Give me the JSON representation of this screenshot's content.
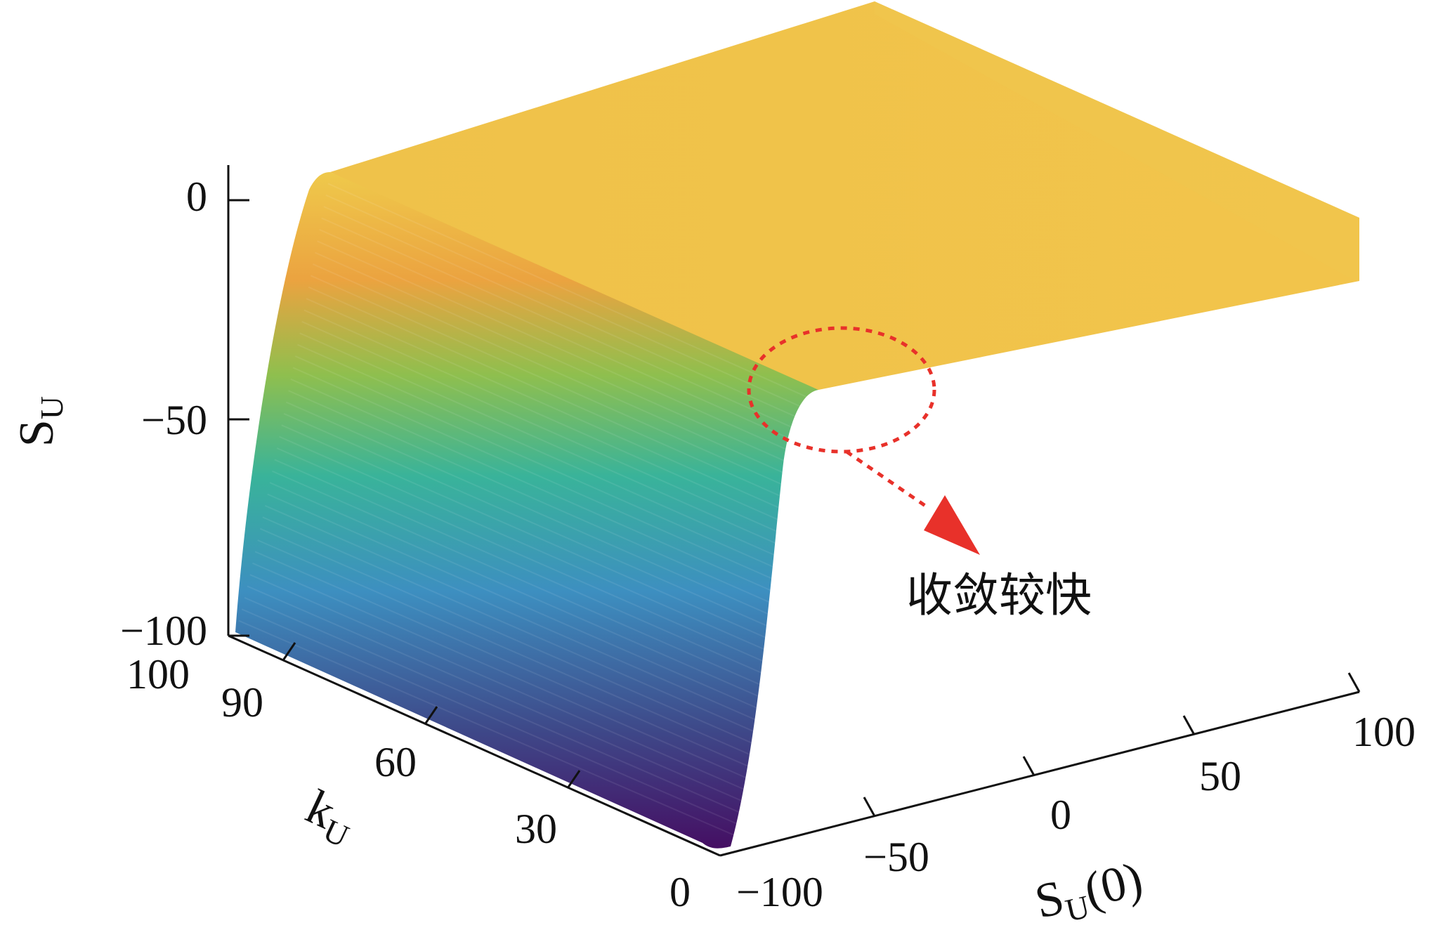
{
  "chart_data": {
    "type": "surface",
    "title": "",
    "z_axis": {
      "label_main": "S",
      "label_sub": "U",
      "ticks": [
        "0",
        "−50",
        "−100"
      ],
      "tick_values": [
        0,
        -50,
        -100
      ],
      "range": [
        -100,
        10
      ]
    },
    "k_axis": {
      "label_main": "k",
      "label_sub": "U",
      "ticks": [
        "0",
        "30",
        "60",
        "90",
        "100"
      ],
      "tick_values": [
        0,
        30,
        60,
        90,
        100
      ],
      "range": [
        0,
        100
      ]
    },
    "s0_axis": {
      "label_main": "S",
      "label_sub": "U",
      "label_suffix": "(0)",
      "ticks": [
        "−100",
        "−50",
        "0",
        "50",
        "100"
      ],
      "tick_values": [
        -100,
        -50,
        0,
        50,
        100
      ],
      "range": [
        -100,
        100
      ]
    },
    "surface_profile": {
      "description_values": "S_U vs k_U: starts at −100 at k_U=0, rises steeply and converges to ≈0 by k_U≈20, stays ≈0 to k_U=100; for all S_U(0) values",
      "k": [
        0,
        2,
        4,
        6,
        8,
        10,
        12,
        14,
        16,
        18,
        20,
        25,
        30,
        40,
        50,
        60,
        70,
        80,
        90,
        100
      ],
      "s": [
        -100,
        -99,
        -96,
        -88,
        -72,
        -52,
        -32,
        -16,
        -7,
        -3,
        -1,
        0,
        0,
        0,
        0,
        0,
        0,
        0,
        0,
        0
      ]
    },
    "colormap": [
      "#440154",
      "#3b528b",
      "#21918c",
      "#5ec962",
      "#e8a33c",
      "#f0c84a",
      "#f3d94f"
    ]
  },
  "annotation": {
    "text": "收敛较快",
    "ellipse_color": "#e8312a",
    "arrow_color": "#e8312a"
  }
}
